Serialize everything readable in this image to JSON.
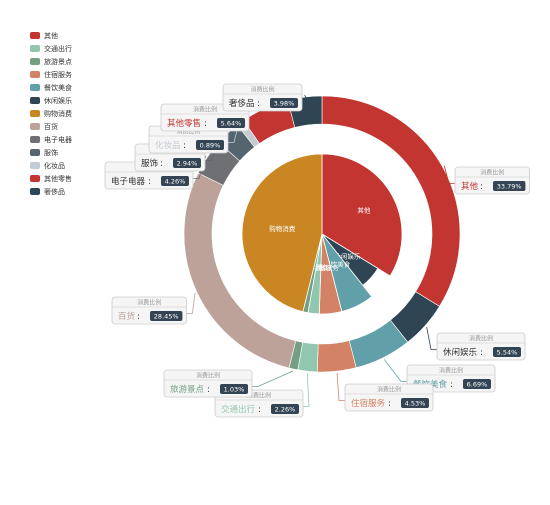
{
  "chart_data": {
    "type": "pie",
    "legend_position": "top-left",
    "outer_label_caption": "消费比例",
    "outer_series": [
      {
        "name": "其他",
        "value": 33.79,
        "color": "#c23531",
        "label": "其他",
        "pct": "33.79%"
      },
      {
        "name": "休闲娱乐",
        "value": 5.54,
        "color": "#2f4554",
        "label": "休闲娱乐",
        "pct": "5.54%"
      },
      {
        "name": "餐饮美食",
        "value": 6.69,
        "color": "#61a0a8",
        "label": "餐饮美食",
        "pct": "6.69%"
      },
      {
        "name": "住宿服务",
        "value": 4.53,
        "color": "#d48265",
        "label": "住宿服务",
        "pct": "4.53%"
      },
      {
        "name": "交通出行",
        "value": 2.26,
        "color": "#91c7ae",
        "label": "交通出行",
        "pct": "2.26%"
      },
      {
        "name": "旅游景点",
        "value": 1.03,
        "color": "#749f83",
        "label": "旅游景点",
        "pct": "1.03%"
      },
      {
        "name": "百货",
        "value": 28.45,
        "color": "#bda29a",
        "label": "百货",
        "pct": "28.45%"
      },
      {
        "name": "电子电器",
        "value": 4.26,
        "color": "#6e7074",
        "label": "电子电器",
        "pct": "4.26%"
      },
      {
        "name": "服饰",
        "value": 2.94,
        "color": "#546570",
        "label": "服饰",
        "pct": "2.94%"
      },
      {
        "name": "化妆品",
        "value": 0.89,
        "color": "#c4ccd3",
        "label": "化妆品",
        "pct": "0.89%"
      },
      {
        "name": "其他零售",
        "value": 5.64,
        "color": "#c23531",
        "label": "其他零售",
        "pct": "5.64%"
      },
      {
        "name": "奢侈品",
        "value": 3.98,
        "color": "#2f4554",
        "label": "奢侈品",
        "pct": "3.98%"
      }
    ],
    "inner_series": [
      {
        "name": "其他",
        "value": 33.79,
        "color": "#c23531"
      },
      {
        "name": "休闲娱乐",
        "value": 5.54,
        "color": "#2f4554"
      },
      {
        "name": "餐饮美食",
        "value": 6.69,
        "color": "#61a0a8"
      },
      {
        "name": "住宿服务",
        "value": 4.53,
        "color": "#d48265"
      },
      {
        "name": "交通出行",
        "value": 2.26,
        "color": "#91c7ae"
      },
      {
        "name": "旅游景点",
        "value": 1.03,
        "color": "#749f83"
      },
      {
        "name": "购物消费",
        "value": 46.16,
        "color": "#ca8622"
      }
    ],
    "legend": [
      {
        "name": "其他",
        "color": "#c23531"
      },
      {
        "name": "交通出行",
        "color": "#91c7ae"
      },
      {
        "name": "旅游景点",
        "color": "#749f83"
      },
      {
        "name": "住宿服务",
        "color": "#d48265"
      },
      {
        "name": "餐饮美食",
        "color": "#61a0a8"
      },
      {
        "name": "休闲娱乐",
        "color": "#2f4554"
      },
      {
        "name": "购物消费",
        "color": "#ca8622"
      },
      {
        "name": "百货",
        "color": "#bda29a"
      },
      {
        "name": "电子电器",
        "color": "#6e7074"
      },
      {
        "name": "服饰",
        "color": "#546570"
      },
      {
        "name": "化妆品",
        "color": "#c4ccd3"
      },
      {
        "name": "其他零售",
        "color": "#c23531"
      },
      {
        "name": "奢侈品",
        "color": "#2f4554"
      }
    ]
  }
}
